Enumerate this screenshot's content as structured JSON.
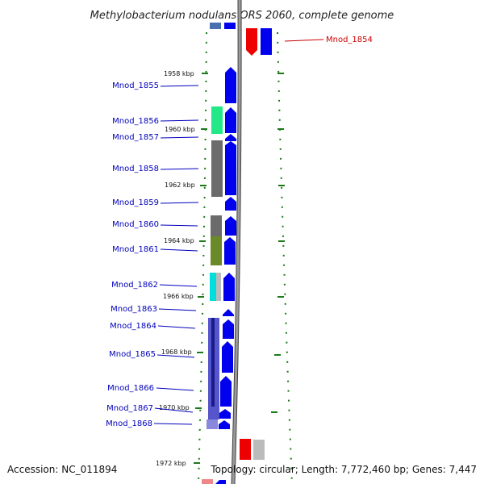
{
  "header": {
    "title": "Methylobacterium nodulans ORS 2060, complete genome"
  },
  "footer": {
    "accession": "Accession: NC_011894",
    "summary": "Topology: circular; Length: 7,772,460 bp; Genes: 7,447"
  },
  "colors": {
    "backbone": "#8a8a8a",
    "tick_green": "#1a7a1a",
    "label_blue": "#0000bb",
    "label_red": "#cc0000",
    "forward_blue": "#0000ee",
    "reverse_red": "#ee0000"
  },
  "ruler": [
    {
      "label": "1958 kbp"
    },
    {
      "label": "1960 kbp"
    },
    {
      "label": "1962 kbp"
    },
    {
      "label": "1964 kbp"
    },
    {
      "label": "1966 kbp"
    },
    {
      "label": "1968 kbp"
    },
    {
      "label": "1970 kbp"
    },
    {
      "label": "1972 kbp"
    }
  ],
  "genes": [
    {
      "label": "Mnod_1854",
      "strand": "reverse",
      "color": "#cc0000"
    },
    {
      "label": "Mnod_1855",
      "strand": "forward",
      "color": "#0000bb"
    },
    {
      "label": "Mnod_1856",
      "strand": "forward",
      "color": "#0000bb"
    },
    {
      "label": "Mnod_1857",
      "strand": "forward",
      "color": "#0000bb"
    },
    {
      "label": "Mnod_1858",
      "strand": "forward",
      "color": "#0000bb"
    },
    {
      "label": "Mnod_1859",
      "strand": "forward",
      "color": "#0000bb"
    },
    {
      "label": "Mnod_1860",
      "strand": "forward",
      "color": "#0000bb"
    },
    {
      "label": "Mnod_1861",
      "strand": "forward",
      "color": "#0000bb"
    },
    {
      "label": "Mnod_1862",
      "strand": "forward",
      "color": "#0000bb"
    },
    {
      "label": "Mnod_1863",
      "strand": "forward",
      "color": "#0000bb"
    },
    {
      "label": "Mnod_1864",
      "strand": "forward",
      "color": "#0000bb"
    },
    {
      "label": "Mnod_1865",
      "strand": "forward",
      "color": "#0000bb"
    },
    {
      "label": "Mnod_1866",
      "strand": "forward",
      "color": "#0000bb"
    },
    {
      "label": "Mnod_1867",
      "strand": "forward",
      "color": "#0000bb"
    },
    {
      "label": "Mnod_1868",
      "strand": "forward",
      "color": "#0000bb"
    }
  ]
}
